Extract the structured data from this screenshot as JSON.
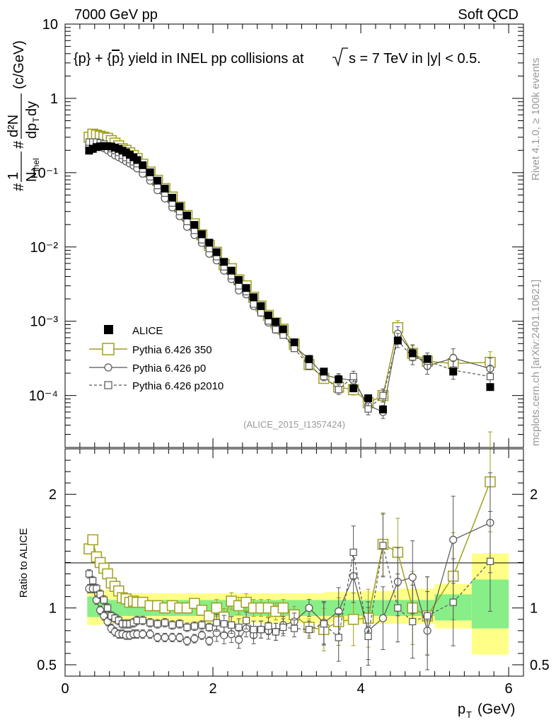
{
  "header": {
    "energy_label": "7000 GeV pp",
    "category_label": "Soft QCD"
  },
  "side_labels": {
    "rivet": "Rivet 4.1.0, ≥ 100k events",
    "source": "mcplots.cern.ch [arXiv:2401.10621]"
  },
  "chart_data": {
    "type": "scatter",
    "title": "{p} + {p̄} yield in INEL pp collisions at √s = 7 TeV in |y| < 0.5.",
    "title_parts": {
      "p1": "{p} + {",
      "p2": "p",
      "p3": "} yield in INEL pp collisions at",
      "p4": "s =  7 TeV in |y| < 0.5."
    },
    "analysis_id": "(ALICE_2015_I1357424)",
    "ylabel_main": "#1/N_inel #d²N/dp_T dy (c/GeV)",
    "ylabel_ratio": "Ratio to ALICE",
    "xlabel": "p_T (GeV)",
    "xlim": [
      0,
      6.2
    ],
    "ylim_main": [
      2e-05,
      10
    ],
    "ylim_ratio": [
      0.4,
      2.4
    ],
    "x_ticks": [
      "0",
      "2",
      "4",
      "6"
    ],
    "y_ticks_main": [
      "10",
      "1",
      "10⁻¹",
      "10⁻²",
      "10⁻³",
      "10⁻⁴"
    ],
    "y_ticks_ratio": [
      "2",
      "1",
      "0.5"
    ],
    "legend": {
      "placement": "lower-left",
      "items": [
        {
          "name": "ALICE",
          "style": "filled-square",
          "color": "#000000"
        },
        {
          "name": "Pythia 6.426 350",
          "style": "open-square-solid",
          "color": "#a0a020"
        },
        {
          "name": "Pythia 6.426 p0",
          "style": "open-circle-solid",
          "color": "#555555"
        },
        {
          "name": "Pythia 6.426 p2010",
          "style": "open-square-dashed",
          "color": "#555555"
        }
      ]
    },
    "x": [
      0.325,
      0.375,
      0.425,
      0.475,
      0.525,
      0.575,
      0.625,
      0.675,
      0.725,
      0.775,
      0.825,
      0.875,
      0.925,
      0.975,
      1.05,
      1.15,
      1.25,
      1.35,
      1.45,
      1.55,
      1.65,
      1.75,
      1.85,
      1.95,
      2.05,
      2.15,
      2.25,
      2.35,
      2.45,
      2.55,
      2.65,
      2.75,
      2.85,
      2.95,
      3.1,
      3.3,
      3.5,
      3.7,
      3.9,
      4.1,
      4.3,
      4.5,
      4.7,
      4.9,
      5.25,
      5.75
    ],
    "series": [
      {
        "name": "ALICE",
        "values": [
          0.198,
          0.209,
          0.221,
          0.226,
          0.228,
          0.227,
          0.225,
          0.217,
          0.209,
          0.198,
          0.187,
          0.174,
          0.161,
          0.148,
          0.126,
          0.101,
          0.078,
          0.061,
          0.046,
          0.035,
          0.0265,
          0.0198,
          0.0148,
          0.0114,
          0.0085,
          0.0063,
          0.0048,
          0.0036,
          0.0028,
          0.0021,
          0.0016,
          0.0012,
          0.00098,
          0.00078,
          0.00052,
          0.00031,
          0.00021,
          0.000165,
          0.000125,
          9.2e-05,
          6.5e-05,
          0.00055,
          0.00037,
          0.00031,
          0.00021,
          0.00013
        ]
      },
      {
        "name": "Pythia 6.426 350",
        "values": [
          0.3,
          0.33,
          0.32,
          0.31,
          0.3,
          0.29,
          0.27,
          0.25,
          0.23,
          0.21,
          0.2,
          0.185,
          0.17,
          0.155,
          0.13,
          0.102,
          0.079,
          0.061,
          0.047,
          0.0345,
          0.0265,
          0.0205,
          0.0145,
          0.0105,
          0.0085,
          0.0058,
          0.0051,
          0.0036,
          0.003,
          0.0021,
          0.0016,
          0.0012,
          0.00095,
          0.00078,
          0.00049,
          0.00026,
          0.00017,
          0.00013,
          0.00012,
          8e-05,
          0.0001,
          0.00082,
          0.00037,
          0.00029,
          0.00027,
          0.00028
        ]
      },
      {
        "name": "Pythia 6.426 p0",
        "values": [
          0.232,
          0.245,
          0.237,
          0.221,
          0.213,
          0.2,
          0.184,
          0.171,
          0.162,
          0.152,
          0.142,
          0.133,
          0.124,
          0.114,
          0.097,
          0.078,
          0.058,
          0.045,
          0.034,
          0.026,
          0.0187,
          0.0145,
          0.0113,
          0.0081,
          0.0066,
          0.0048,
          0.0037,
          0.0026,
          0.0023,
          0.0016,
          0.0013,
          0.00096,
          0.00077,
          0.00066,
          0.00046,
          0.00031,
          0.00019,
          0.00017,
          0.00016,
          7.4e-05,
          6e-05,
          0.00068,
          0.00038,
          0.00025,
          0.00032,
          0.00023
        ]
      },
      {
        "name": "Pythia 6.426 p2010",
        "values": [
          0.258,
          0.259,
          0.258,
          0.252,
          0.243,
          0.227,
          0.21,
          0.198,
          0.187,
          0.171,
          0.16,
          0.15,
          0.14,
          0.132,
          0.112,
          0.088,
          0.067,
          0.053,
          0.039,
          0.03,
          0.022,
          0.0167,
          0.0125,
          0.0095,
          0.0074,
          0.0054,
          0.0041,
          0.003,
          0.0025,
          0.0017,
          0.0013,
          0.00101,
          0.00077,
          0.00065,
          0.00043,
          0.00025,
          0.00018,
          0.00012,
          0.00018,
          6.6e-05,
          0.0001,
          0.00055,
          0.00033,
          0.00029,
          0.00022,
          0.00018
        ]
      }
    ],
    "ratios": [
      {
        "name": "Pythia 6.426 350",
        "values": [
          1.52,
          1.6,
          1.45,
          1.4,
          1.35,
          1.3,
          1.22,
          1.19,
          1.15,
          1.09,
          1.08,
          1.05,
          1.06,
          1.05,
          1.05,
          1.02,
          1.02,
          1.0,
          1.02,
          1.0,
          1.0,
          1.04,
          0.98,
          0.93,
          1.0,
          0.92,
          1.06,
          1.02,
          1.05,
          1.0,
          1.0,
          1.0,
          0.97,
          1.0,
          0.94,
          0.83,
          0.81,
          0.88,
          0.9,
          0.91,
          1.56,
          1.49,
          1.0,
          0.93,
          1.28,
          2.11
        ]
      },
      {
        "name": "Pythia 6.426 p0",
        "values": [
          1.17,
          1.17,
          1.07,
          0.98,
          0.93,
          0.88,
          0.82,
          0.79,
          0.77,
          0.77,
          0.76,
          0.76,
          0.77,
          0.77,
          0.77,
          0.77,
          0.74,
          0.74,
          0.74,
          0.74,
          0.71,
          0.73,
          0.76,
          0.71,
          0.78,
          0.76,
          0.77,
          0.72,
          0.82,
          0.76,
          0.81,
          0.8,
          0.79,
          0.85,
          0.88,
          1.0,
          0.87,
          0.97,
          1.28,
          0.8,
          0.91,
          1.23,
          1.27,
          0.8,
          1.6,
          1.75
        ]
      },
      {
        "name": "Pythia 6.426 p2010",
        "values": [
          1.3,
          1.24,
          1.17,
          1.12,
          1.07,
          1.0,
          0.93,
          0.91,
          0.89,
          0.86,
          0.86,
          0.86,
          0.87,
          0.89,
          0.89,
          0.87,
          0.86,
          0.87,
          0.85,
          0.86,
          0.83,
          0.84,
          0.85,
          0.83,
          0.87,
          0.86,
          0.85,
          0.83,
          0.89,
          0.81,
          0.81,
          0.84,
          0.79,
          0.83,
          0.82,
          0.81,
          0.86,
          0.74,
          1.49,
          0.75,
          1.55,
          1.0,
          0.88,
          0.93,
          1.05,
          1.41
        ]
      }
    ],
    "ratio_bands": {
      "edges": [
        0.3,
        0.5,
        0.6,
        0.8,
        1.0,
        1.2,
        1.4,
        1.6,
        1.8,
        2.0,
        2.5,
        3.0,
        3.5,
        4.0,
        4.5,
        5.0,
        5.5,
        6.0
      ],
      "inner_lo": [
        0.92,
        0.92,
        0.93,
        0.93,
        0.93,
        0.93,
        0.93,
        0.93,
        0.93,
        0.93,
        0.93,
        0.93,
        0.93,
        0.93,
        0.93,
        0.89,
        0.82
      ],
      "inner_hi": [
        1.1,
        1.08,
        1.07,
        1.07,
        1.07,
        1.07,
        1.07,
        1.07,
        1.07,
        1.07,
        1.07,
        1.07,
        1.07,
        1.07,
        1.07,
        1.12,
        1.25
      ],
      "outer_lo": [
        0.85,
        0.86,
        0.86,
        0.87,
        0.87,
        0.87,
        0.87,
        0.87,
        0.87,
        0.87,
        0.87,
        0.87,
        0.87,
        0.86,
        0.86,
        0.82,
        0.59
      ],
      "outer_hi": [
        1.17,
        1.16,
        1.14,
        1.13,
        1.13,
        1.13,
        1.13,
        1.13,
        1.13,
        1.13,
        1.13,
        1.13,
        1.14,
        1.15,
        1.17,
        1.21,
        1.48
      ],
      "inner_color": "#88ee88",
      "outer_color": "#ffff88"
    },
    "colors": {
      "data": "#000000",
      "p350": "#a0a020",
      "p0": "#555555",
      "p2010": "#555555",
      "axis": "#000000",
      "id_text": "#999999"
    }
  }
}
